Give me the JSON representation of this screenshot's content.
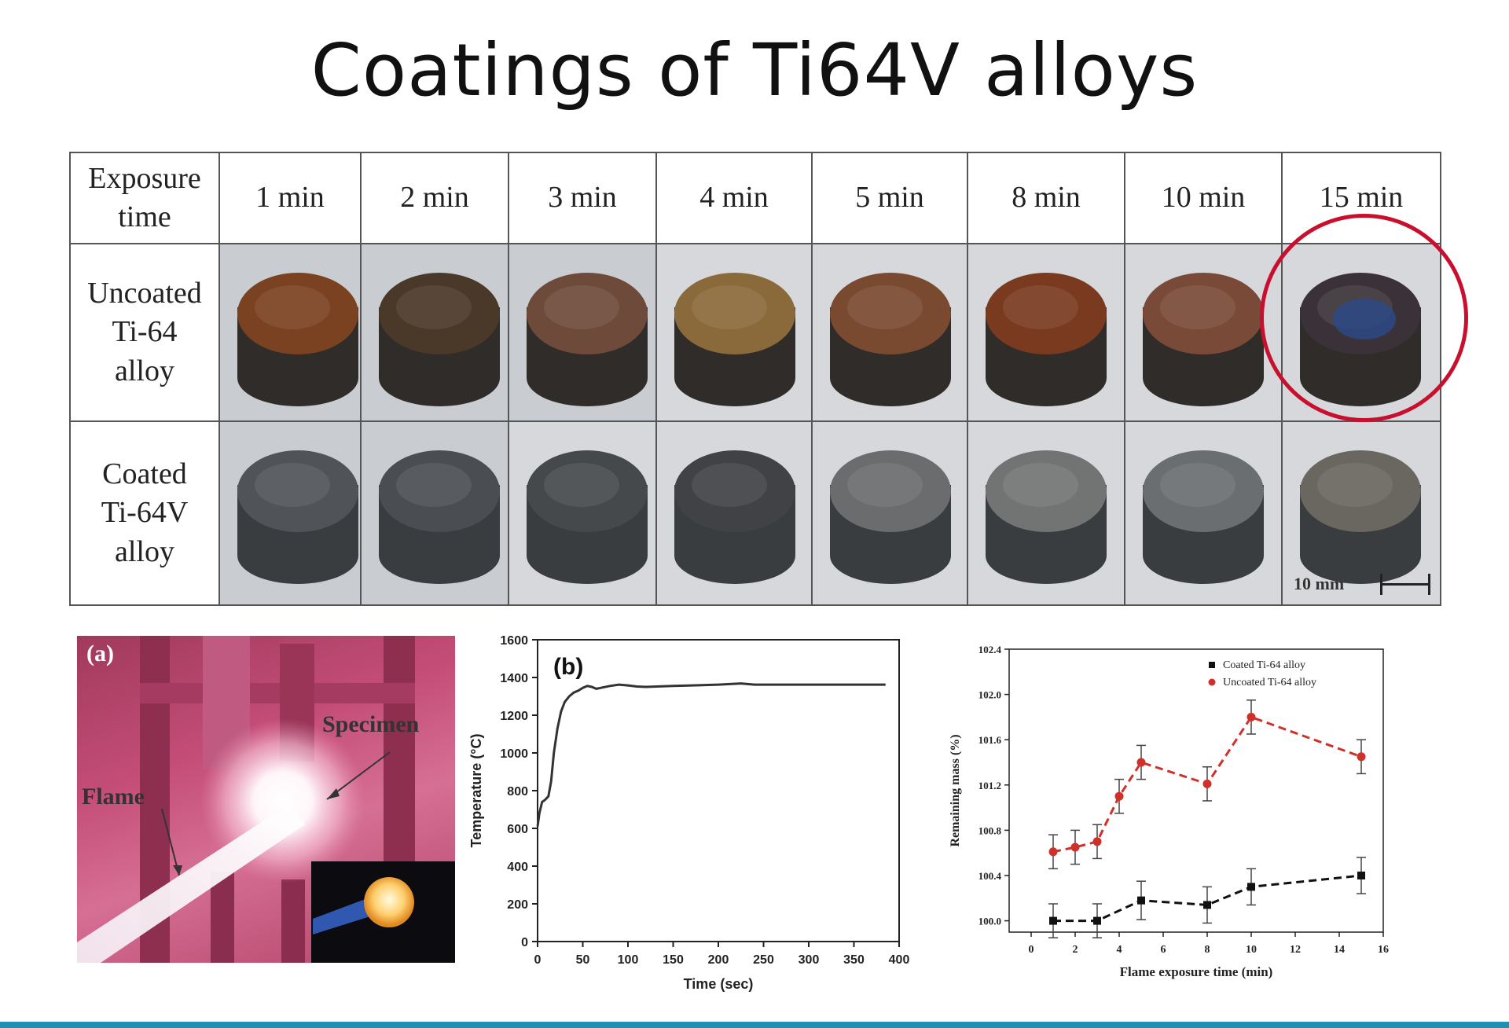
{
  "title": "Coatings of Ti64V alloys",
  "table": {
    "header_label": [
      "Exposure",
      "time"
    ],
    "times": [
      "1 min",
      "2 min",
      "3 min",
      "4 min",
      "5 min",
      "8 min",
      "10 min",
      "15 min"
    ],
    "uncoated_label": [
      "Uncoated",
      "Ti-64",
      "alloy"
    ],
    "coated_label": [
      "Coated",
      "Ti-64V",
      "alloy"
    ],
    "uncoated_colors": [
      "#7a4220",
      "#4a3828",
      "#6e4a3a",
      "#8a6a3a",
      "#7a4a30",
      "#7a3a20",
      "#7a4a38",
      "#3a3238"
    ],
    "coated_colors": [
      "#505458",
      "#4a4e52",
      "#46494c",
      "#404246",
      "#6a6c6e",
      "#727474",
      "#6a6e70",
      "#6a6660"
    ],
    "scale_bar": "10 mm",
    "highlight": "15 min uncoated"
  },
  "photo": {
    "label": "(a)",
    "specimen": "Specimen",
    "flame": "Flame"
  },
  "chart_data": [
    {
      "type": "line",
      "label": "(b)",
      "xlabel": "Time (sec)",
      "ylabel": "Temperature (°C)",
      "xlim": [
        0,
        400
      ],
      "ylim": [
        0,
        1600
      ],
      "xticks": [
        0,
        50,
        100,
        150,
        200,
        250,
        300,
        350,
        400
      ],
      "yticks": [
        0,
        200,
        400,
        600,
        800,
        1000,
        1200,
        1400,
        1600
      ],
      "x": [
        0,
        2,
        5,
        8,
        12,
        15,
        18,
        22,
        26,
        30,
        35,
        40,
        45,
        50,
        55,
        60,
        65,
        70,
        80,
        90,
        100,
        110,
        120,
        150,
        200,
        225,
        240,
        300,
        350,
        385
      ],
      "y": [
        610,
        680,
        740,
        750,
        770,
        850,
        1000,
        1130,
        1220,
        1270,
        1300,
        1320,
        1330,
        1345,
        1355,
        1350,
        1340,
        1345,
        1355,
        1362,
        1358,
        1352,
        1350,
        1355,
        1362,
        1368,
        1362,
        1362,
        1362,
        1362
      ],
      "grid": false
    },
    {
      "type": "line",
      "xlabel": "Flame exposure time (min)",
      "ylabel": "Remaining mass (%)",
      "xlim": [
        -1,
        16
      ],
      "ylim": [
        99.9,
        102.4
      ],
      "xticks": [
        0,
        2,
        4,
        6,
        8,
        10,
        12,
        14,
        16
      ],
      "yticks": [
        100.0,
        100.4,
        100.8,
        101.2,
        101.6,
        102.0,
        102.4
      ],
      "legend": "top-right",
      "grid": false,
      "series": [
        {
          "name": "Coated Ti-64 alloy",
          "color": "#111111",
          "x": [
            1,
            3,
            5,
            8,
            10,
            15
          ],
          "y": [
            100.0,
            100.0,
            100.18,
            100.14,
            100.3,
            100.4
          ],
          "err": [
            0.15,
            0.15,
            0.17,
            0.16,
            0.16,
            0.16
          ]
        },
        {
          "name": "Uncoated Ti-64 alloy",
          "color": "#d0302a",
          "x": [
            1,
            2,
            3,
            4,
            5,
            8,
            10,
            15
          ],
          "y": [
            100.61,
            100.65,
            100.7,
            101.1,
            101.4,
            101.21,
            101.8,
            101.45
          ],
          "err": [
            0.15,
            0.15,
            0.15,
            0.15,
            0.15,
            0.15,
            0.15,
            0.15
          ]
        }
      ]
    }
  ]
}
